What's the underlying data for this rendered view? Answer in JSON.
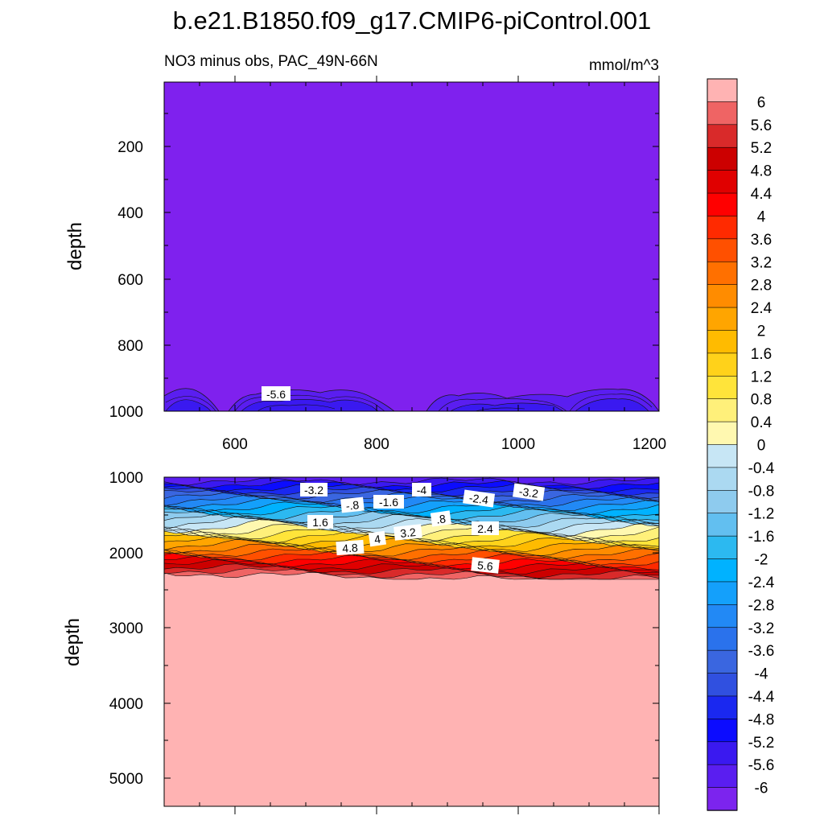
{
  "title": "b.e21.B1850.f09_g17.CMIP6-piControl.001",
  "chart_data": [
    {
      "type": "contour",
      "panel": "upper",
      "subtitle_left": "NO3 minus obs, PAC_49N-66N",
      "subtitle_right": "mmol/m^3",
      "ylabel": "depth",
      "xlim": [
        500,
        1200
      ],
      "ylim": [
        0,
        1000
      ],
      "y_reversed": true,
      "x_ticks": [
        "600",
        "800",
        "1000",
        "1200"
      ],
      "y_ticks": [
        "200",
        "400",
        "600",
        "800",
        "1000"
      ],
      "contour_labels": [
        "-5.6"
      ]
    },
    {
      "type": "contour",
      "panel": "lower",
      "ylabel": "depth",
      "xlim": [
        500,
        1200
      ],
      "ylim": [
        1000,
        5400
      ],
      "y_reversed": true,
      "y_ticks": [
        "1000",
        "2000",
        "3000",
        "4000",
        "5000"
      ],
      "contour_labels": [
        "-3.2",
        "-.8",
        "-1.6",
        "-4",
        "-2.4",
        "-3.2",
        "1.6",
        ".8",
        "2.4",
        "4",
        "3.2",
        "4.8",
        "5.6"
      ]
    }
  ],
  "colorbar": {
    "levels": [
      "6",
      "5.6",
      "5.2",
      "4.8",
      "4.4",
      "4",
      "3.6",
      "3.2",
      "2.8",
      "2.4",
      "2",
      "1.6",
      "1.2",
      "0.8",
      "0.4",
      "0",
      "-0.4",
      "-0.8",
      "-1.2",
      "-1.6",
      "-2",
      "-2.4",
      "-2.8",
      "-3.2",
      "-3.6",
      "-4",
      "-4.4",
      "-4.8",
      "-5.2",
      "-5.6",
      "-6"
    ],
    "colors": [
      "#ffb3b3",
      "#ef6464",
      "#d92a2a",
      "#cc0000",
      "#e00000",
      "#ff0000",
      "#ff2a00",
      "#ff5000",
      "#ff7000",
      "#ff8c00",
      "#ffa500",
      "#ffbb00",
      "#ffd21a",
      "#ffe43a",
      "#fff07a",
      "#fff8b0",
      "#c7e6f5",
      "#abd9f1",
      "#8ecbee",
      "#62bff0",
      "#2cb9f0",
      "#00b2ff",
      "#14a0fb",
      "#2289f5",
      "#2a72ec",
      "#3a66e0",
      "#3050e0",
      "#1a28f0",
      "#0c0cff",
      "#3a19f0",
      "#5a1ef0",
      "#7c24ee"
    ]
  }
}
